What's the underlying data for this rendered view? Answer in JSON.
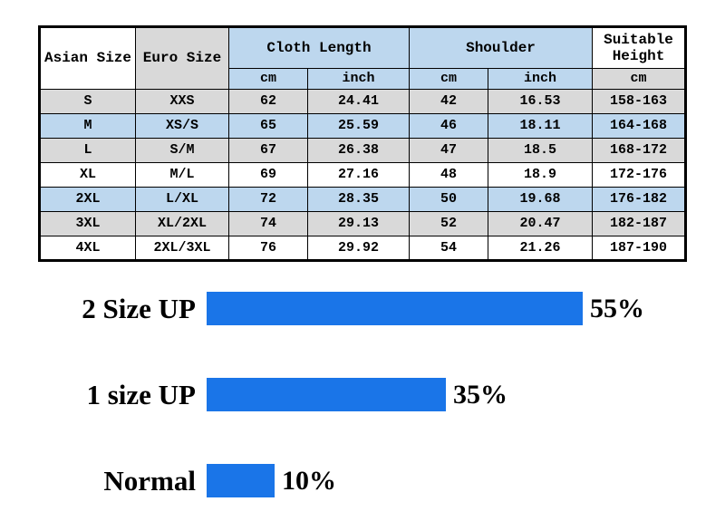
{
  "table": {
    "headers": {
      "asian_size": "Asian Size",
      "euro_size": "Euro Size",
      "cloth_length": "Cloth Length",
      "shoulder": "Shoulder",
      "suitable_height": "Suitable Height"
    },
    "subheaders": {
      "cloth_cm": "cm",
      "cloth_inch": "inch",
      "shoulder_cm": "cm",
      "shoulder_inch": "inch",
      "height_cm": "cm"
    },
    "rows": [
      {
        "asian": "S",
        "euro": "XXS",
        "cloth_cm": "62",
        "cloth_inch": "24.41",
        "shoulder_cm": "42",
        "shoulder_inch": "16.53",
        "height": "158-163"
      },
      {
        "asian": "M",
        "euro": "XS/S",
        "cloth_cm": "65",
        "cloth_inch": "25.59",
        "shoulder_cm": "46",
        "shoulder_inch": "18.11",
        "height": "164-168"
      },
      {
        "asian": "L",
        "euro": "S/M",
        "cloth_cm": "67",
        "cloth_inch": "26.38",
        "shoulder_cm": "47",
        "shoulder_inch": "18.5",
        "height": "168-172"
      },
      {
        "asian": "XL",
        "euro": "M/L",
        "cloth_cm": "69",
        "cloth_inch": "27.16",
        "shoulder_cm": "48",
        "shoulder_inch": "18.9",
        "height": "172-176"
      },
      {
        "asian": "2XL",
        "euro": "L/XL",
        "cloth_cm": "72",
        "cloth_inch": "28.35",
        "shoulder_cm": "50",
        "shoulder_inch": "19.68",
        "height": "176-182"
      },
      {
        "asian": "3XL",
        "euro": "XL/2XL",
        "cloth_cm": "74",
        "cloth_inch": "29.13",
        "shoulder_cm": "52",
        "shoulder_inch": "20.47",
        "height": "182-187"
      },
      {
        "asian": "4XL",
        "euro": "2XL/3XL",
        "cloth_cm": "76",
        "cloth_inch": "29.92",
        "shoulder_cm": "54",
        "shoulder_inch": "21.26",
        "height": "187-190"
      }
    ],
    "colors": {
      "row_gray": "#d9d9d9",
      "row_blue": "#bdd7ee",
      "row_white": "#ffffff",
      "border": "#000000"
    }
  },
  "chart_data": {
    "type": "bar",
    "orientation": "horizontal",
    "title": "",
    "categories": [
      "2 Size UP",
      "1 size UP",
      "Normal"
    ],
    "values": [
      55,
      35,
      10
    ],
    "value_labels": [
      "55%",
      "35%",
      "10%"
    ],
    "bar_color": "#1a75e8",
    "xlim": [
      0,
      60
    ],
    "grid": false,
    "legend": "none"
  }
}
